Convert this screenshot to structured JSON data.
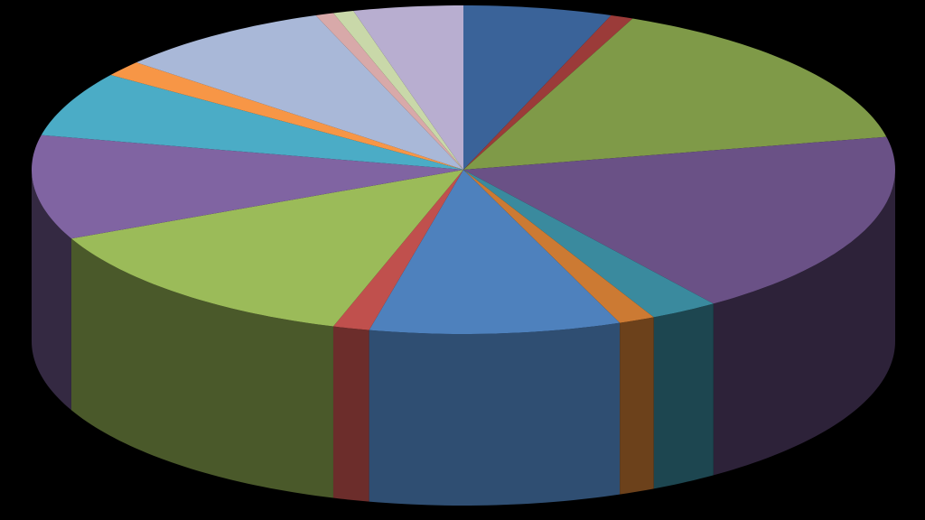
{
  "chart_data": {
    "type": "pie",
    "style": "3d-pie",
    "background": "#000000",
    "start_angle_deg": -90,
    "direction": "clockwise",
    "title": "",
    "legend": "none",
    "slices": [
      {
        "value": 6.5,
        "color": "#3A6399"
      },
      {
        "value": 1.0,
        "color": "#9B3B39"
      },
      {
        "value": 18.0,
        "color": "#7F9A48"
      },
      {
        "value": 21.5,
        "color": "#6A5186"
      },
      {
        "value": 3.0,
        "color": "#3A8A9E"
      },
      {
        "value": 1.6,
        "color": "#CC7A33"
      },
      {
        "value": 11.0,
        "color": "#4E81BD"
      },
      {
        "value": 1.6,
        "color": "#C0504D"
      },
      {
        "value": 15.5,
        "color": "#9BBB59"
      },
      {
        "value": 12.0,
        "color": "#8064A2"
      },
      {
        "value": 7.5,
        "color": "#4BACC6"
      },
      {
        "value": 1.8,
        "color": "#F79646"
      },
      {
        "value": 9.5,
        "color": "#A9B8D8"
      },
      {
        "value": 0.8,
        "color": "#D8A9A9"
      },
      {
        "value": 0.9,
        "color": "#C9D8A9"
      },
      {
        "value": 4.8,
        "color": "#B8AED0"
      }
    ]
  }
}
